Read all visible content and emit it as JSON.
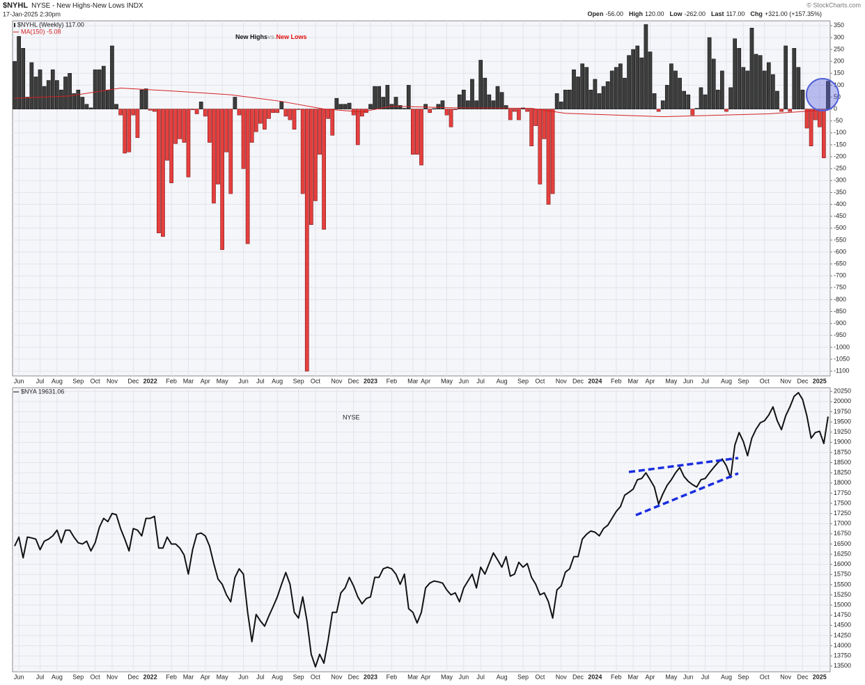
{
  "header": {
    "symbol": "$NYHL",
    "name": "NYSE - New Highs-New Lows INDX",
    "date": "17-Jan-2025 2:30pm",
    "copyright": "© StockCharts.com",
    "quote": [
      {
        "label": "Open",
        "value": "-56.00"
      },
      {
        "label": "High",
        "value": "120.00"
      },
      {
        "label": "Low",
        "value": "-262.00"
      },
      {
        "label": "Last",
        "value": "117.00"
      },
      {
        "label": "Chg",
        "value": "+321.00 (+157.35%)"
      }
    ]
  },
  "chart_data": [
    {
      "type": "bar",
      "title": [
        "New Highs",
        "vs.",
        "New Lows"
      ],
      "series": [
        {
          "name": "$NYHL (Weekly) 117.00",
          "color": "#3d3d3d",
          "negative_color": "#e5403f",
          "values": [
            200,
            305,
            255,
            50,
            195,
            135,
            165,
            95,
            120,
            165,
            120,
            80,
            135,
            150,
            65,
            80,
            50,
            20,
            5,
            165,
            165,
            180,
            80,
            265,
            20,
            -25,
            -185,
            -180,
            -25,
            -120,
            80,
            85,
            -5,
            -10,
            -520,
            -535,
            -215,
            -310,
            -145,
            -125,
            -140,
            -285,
            -3,
            -20,
            30,
            -30,
            -140,
            -395,
            -315,
            -590,
            -180,
            -355,
            50,
            -25,
            -250,
            -565,
            -140,
            -95,
            -60,
            -85,
            -40,
            -15,
            -15,
            30,
            -30,
            -45,
            -85,
            -2,
            -355,
            -1100,
            -485,
            -385,
            -190,
            -505,
            -40,
            -110,
            45,
            20,
            20,
            25,
            -25,
            -150,
            -30,
            -15,
            20,
            95,
            95,
            50,
            100,
            20,
            50,
            15,
            3,
            100,
            -190,
            -190,
            -235,
            20,
            -15,
            2,
            20,
            35,
            -25,
            -75,
            -3,
            60,
            80,
            35,
            125,
            35,
            205,
            130,
            60,
            35,
            95,
            70,
            15,
            -45,
            -10,
            -45,
            5,
            -10,
            -155,
            -70,
            -315,
            -125,
            -400,
            -355,
            65,
            30,
            80,
            80,
            165,
            135,
            190,
            175,
            80,
            125,
            65,
            95,
            115,
            160,
            175,
            190,
            130,
            225,
            250,
            265,
            215,
            355,
            240,
            65,
            -10,
            35,
            100,
            190,
            160,
            130,
            75,
            60,
            -25,
            3,
            90,
            60,
            300,
            210,
            80,
            160,
            -10,
            90,
            295,
            255,
            175,
            160,
            340,
            230,
            225,
            160,
            195,
            145,
            75,
            -10,
            265,
            -10,
            255,
            175,
            80,
            -80,
            -155,
            -45,
            -75,
            -205,
            117
          ]
        }
      ],
      "ma": {
        "name": "MA(150) -5.08",
        "color": "#d42020",
        "x": [
          0,
          13,
          25,
          38,
          51,
          63,
          73,
          82,
          89,
          104,
          122,
          130,
          153,
          178,
          188,
          192
        ],
        "values": [
          45,
          55,
          88,
          75,
          60,
          32,
          0,
          -12,
          12,
          5,
          3,
          -18,
          -32,
          -20,
          -8,
          -5.08
        ]
      },
      "xlim": [
        -0.5,
        192.5
      ],
      "ylim": [
        -1120,
        370
      ],
      "yticks": [
        350,
        300,
        250,
        200,
        150,
        100,
        50,
        0,
        -50,
        -100,
        -150,
        -200,
        -250,
        -300,
        -350,
        -400,
        -450,
        -500,
        -550,
        -600,
        -650,
        -700,
        -750,
        -800,
        -850,
        -900,
        -950,
        -1000,
        -1050,
        -1100
      ],
      "xticks": [
        {
          "value": 1,
          "label": "Jun"
        },
        {
          "value": 6,
          "label": "Jul"
        },
        {
          "value": 10,
          "label": "Aug"
        },
        {
          "value": 15,
          "label": "Sep"
        },
        {
          "value": 19,
          "label": "Oct"
        },
        {
          "value": 23,
          "label": "Nov"
        },
        {
          "value": 28,
          "label": "Dec"
        },
        {
          "value": 32,
          "label": "2022"
        },
        {
          "value": 37,
          "label": "Feb"
        },
        {
          "value": 41,
          "label": "Mar"
        },
        {
          "value": 45,
          "label": "Apr"
        },
        {
          "value": 49,
          "label": "May"
        },
        {
          "value": 54,
          "label": "Jun"
        },
        {
          "value": 58,
          "label": "Jul"
        },
        {
          "value": 62,
          "label": "Aug"
        },
        {
          "value": 67,
          "label": "Sep"
        },
        {
          "value": 71,
          "label": "Oct"
        },
        {
          "value": 76,
          "label": "Nov"
        },
        {
          "value": 80,
          "label": "Dec"
        },
        {
          "value": 84,
          "label": "2023"
        },
        {
          "value": 89,
          "label": "Feb"
        },
        {
          "value": 94,
          "label": "Mar"
        },
        {
          "value": 97,
          "label": "Apr"
        },
        {
          "value": 102,
          "label": "May"
        },
        {
          "value": 106,
          "label": "Jun"
        },
        {
          "value": 110,
          "label": "Jul"
        },
        {
          "value": 115,
          "label": "Aug"
        },
        {
          "value": 120,
          "label": "Sep"
        },
        {
          "value": 124,
          "label": "Oct"
        },
        {
          "value": 129,
          "label": "Nov"
        },
        {
          "value": 133,
          "label": "Dec"
        },
        {
          "value": 137,
          "label": "2024"
        },
        {
          "value": 142,
          "label": "Feb"
        },
        {
          "value": 146,
          "label": "Mar"
        },
        {
          "value": 150,
          "label": "Apr"
        },
        {
          "value": 155,
          "label": "May"
        },
        {
          "value": 159,
          "label": "Jun"
        },
        {
          "value": 163,
          "label": "Jul"
        },
        {
          "value": 168,
          "label": "Aug"
        },
        {
          "value": 172,
          "label": "Sep"
        },
        {
          "value": 177,
          "label": "Oct"
        },
        {
          "value": 182,
          "label": "Nov"
        },
        {
          "value": 186,
          "label": "Dec"
        },
        {
          "value": 190,
          "label": "2025"
        }
      ],
      "grid": true
    },
    {
      "type": "line",
      "annotation": "NYSE",
      "series": [
        {
          "name": "$NYA 19631.06",
          "color": "#111111",
          "values": [
            16450,
            16670,
            16160,
            16670,
            16650,
            16620,
            16360,
            16570,
            16620,
            16700,
            16840,
            16530,
            16840,
            16840,
            16670,
            16530,
            16500,
            16570,
            16330,
            16530,
            16910,
            17130,
            17050,
            17250,
            17220,
            16880,
            16620,
            16330,
            16880,
            16840,
            16700,
            17130,
            17130,
            17180,
            16400,
            16400,
            16670,
            16500,
            16500,
            16400,
            16230,
            15760,
            16360,
            16740,
            16770,
            16700,
            16450,
            16020,
            15640,
            15510,
            15250,
            15080,
            15680,
            15890,
            15760,
            14820,
            14100,
            14770,
            14610,
            14480,
            14730,
            14960,
            15200,
            15510,
            15800,
            15510,
            14820,
            14680,
            15200,
            14610,
            13790,
            13480,
            13790,
            13570,
            14140,
            14820,
            14820,
            15300,
            15420,
            15680,
            15470,
            15200,
            15030,
            15160,
            15200,
            15680,
            15680,
            15890,
            15930,
            15890,
            15760,
            15510,
            15760,
            14910,
            14820,
            14560,
            14820,
            15420,
            15540,
            15590,
            15570,
            15540,
            15370,
            15250,
            15300,
            15080,
            15420,
            15590,
            15760,
            15420,
            15930,
            15760,
            16020,
            16280,
            16110,
            15930,
            16190,
            15710,
            15760,
            16050,
            15930,
            16020,
            15680,
            15510,
            15250,
            15300,
            15080,
            14680,
            15370,
            15470,
            15810,
            15890,
            16190,
            16190,
            16620,
            16740,
            16820,
            16790,
            16700,
            16880,
            16960,
            17130,
            17300,
            17420,
            17700,
            17770,
            17850,
            18080,
            18110,
            18250,
            18080,
            17900,
            17480,
            17730,
            17940,
            18080,
            18250,
            18380,
            18160,
            18040,
            17960,
            17900,
            18080,
            18110,
            18250,
            18380,
            18500,
            18590,
            18420,
            18130,
            18930,
            19240,
            19020,
            18670,
            19100,
            19320,
            19480,
            19530,
            19670,
            19870,
            19530,
            19310,
            19650,
            19870,
            20130,
            20220,
            20050,
            19650,
            19100,
            19240,
            19270,
            18970,
            19631.06
          ]
        }
      ],
      "xlim": [
        -0.5,
        192.5
      ],
      "ylim": [
        13360,
        20340
      ],
      "yticks": [
        20250,
        20000,
        19750,
        19500,
        19250,
        19000,
        18750,
        18500,
        18250,
        18000,
        17750,
        17500,
        17250,
        17000,
        16750,
        16500,
        16250,
        16000,
        15750,
        15500,
        15250,
        15000,
        14750,
        14500,
        14250,
        14000,
        13750,
        13500
      ],
      "xticks": [
        {
          "value": 1,
          "label": "Jun"
        },
        {
          "value": 6,
          "label": "Jul"
        },
        {
          "value": 10,
          "label": "Aug"
        },
        {
          "value": 15,
          "label": "Sep"
        },
        {
          "value": 19,
          "label": "Oct"
        },
        {
          "value": 23,
          "label": "Nov"
        },
        {
          "value": 28,
          "label": "Dec"
        },
        {
          "value": 32,
          "label": "2022"
        },
        {
          "value": 37,
          "label": "Feb"
        },
        {
          "value": 41,
          "label": "Mar"
        },
        {
          "value": 45,
          "label": "Apr"
        },
        {
          "value": 49,
          "label": "May"
        },
        {
          "value": 54,
          "label": "Jun"
        },
        {
          "value": 58,
          "label": "Jul"
        },
        {
          "value": 62,
          "label": "Aug"
        },
        {
          "value": 67,
          "label": "Sep"
        },
        {
          "value": 71,
          "label": "Oct"
        },
        {
          "value": 76,
          "label": "Nov"
        },
        {
          "value": 80,
          "label": "Dec"
        },
        {
          "value": 84,
          "label": "2023"
        },
        {
          "value": 89,
          "label": "Feb"
        },
        {
          "value": 94,
          "label": "Mar"
        },
        {
          "value": 97,
          "label": "Apr"
        },
        {
          "value": 102,
          "label": "May"
        },
        {
          "value": 106,
          "label": "Jun"
        },
        {
          "value": 110,
          "label": "Jul"
        },
        {
          "value": 115,
          "label": "Aug"
        },
        {
          "value": 120,
          "label": "Sep"
        },
        {
          "value": 124,
          "label": "Oct"
        },
        {
          "value": 129,
          "label": "Nov"
        },
        {
          "value": 133,
          "label": "Dec"
        },
        {
          "value": 137,
          "label": "2024"
        },
        {
          "value": 142,
          "label": "Feb"
        },
        {
          "value": 146,
          "label": "Mar"
        },
        {
          "value": 150,
          "label": "Apr"
        },
        {
          "value": 155,
          "label": "May"
        },
        {
          "value": 159,
          "label": "Jun"
        },
        {
          "value": 163,
          "label": "Jul"
        },
        {
          "value": 168,
          "label": "Aug"
        },
        {
          "value": 172,
          "label": "Sep"
        },
        {
          "value": 177,
          "label": "Oct"
        },
        {
          "value": 182,
          "label": "Nov"
        },
        {
          "value": 186,
          "label": "Dec"
        },
        {
          "value": 190,
          "label": "2025"
        }
      ],
      "grid": true
    }
  ]
}
